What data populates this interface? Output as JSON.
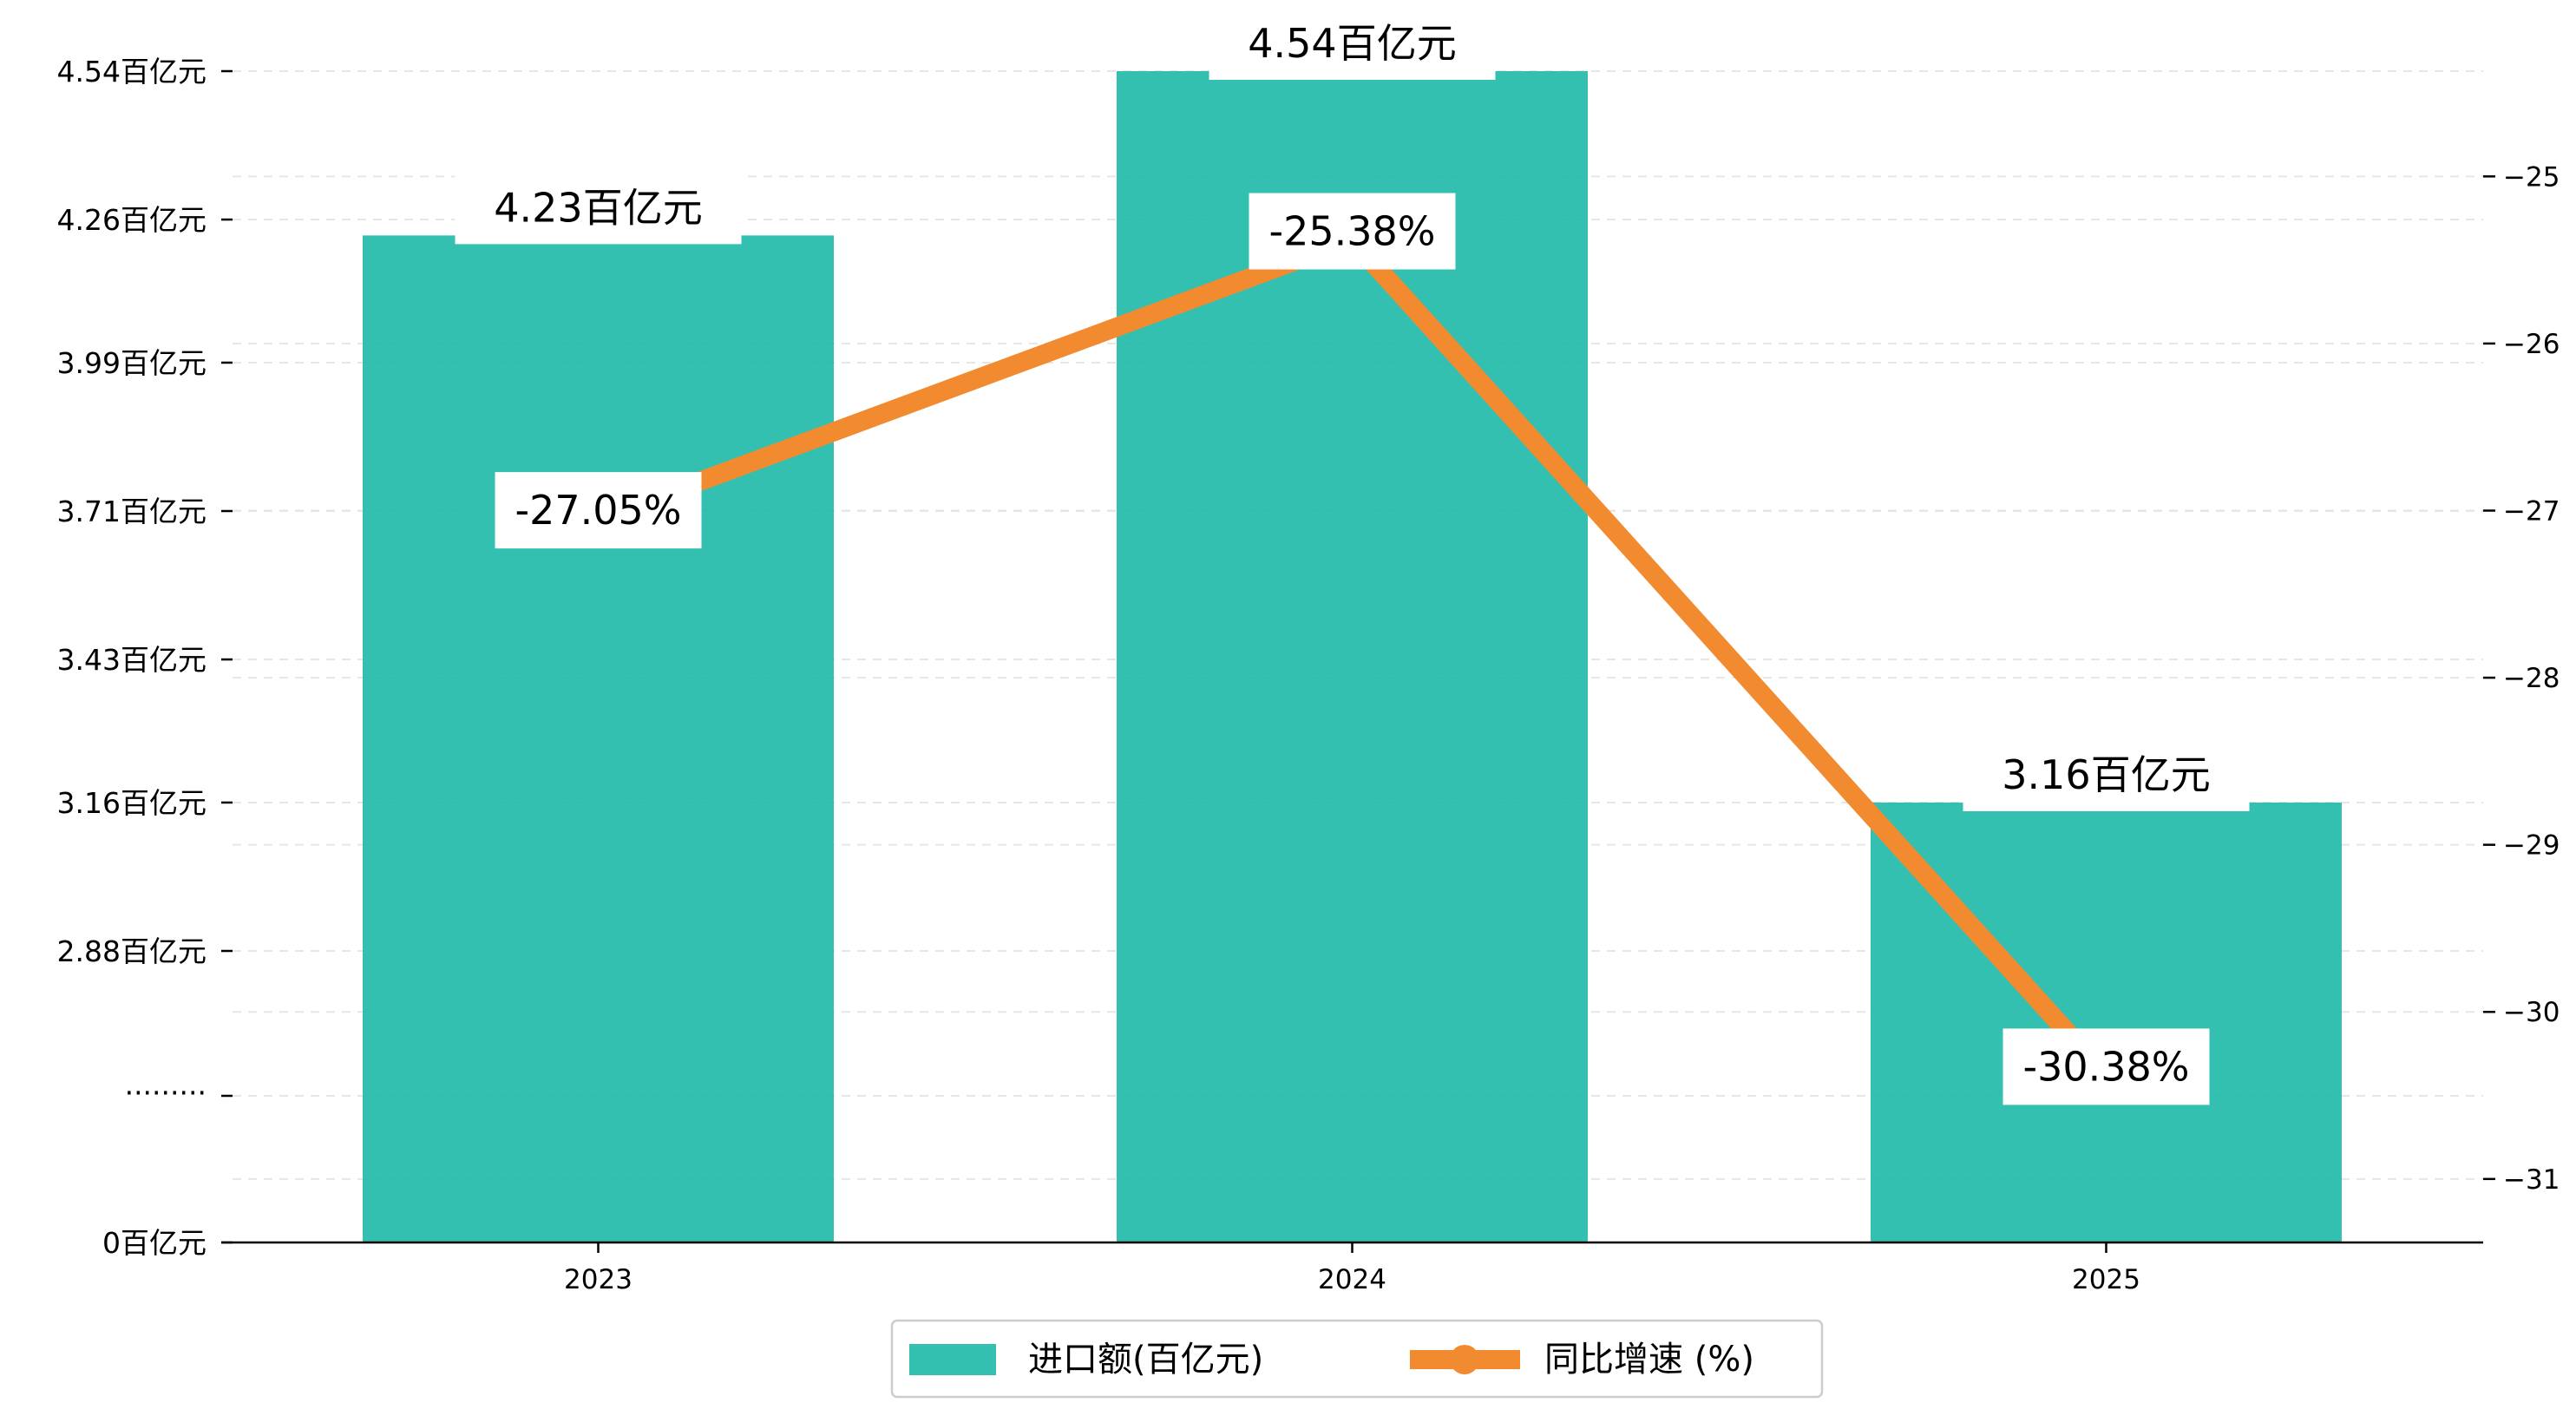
{
  "chart_data": {
    "type": "bar",
    "categories": [
      "2023",
      "2024",
      "2025"
    ],
    "series": [
      {
        "name": "进口额(百亿元)",
        "type": "bar",
        "axis": "left",
        "values": [
          4.23,
          4.54,
          3.16
        ],
        "labels": [
          "4.23百亿元",
          "4.54百亿元",
          "3.16百亿元"
        ],
        "color": "#1DB9A8"
      },
      {
        "name": "同比增速 (%)",
        "type": "line",
        "axis": "right",
        "values": [
          -27.05,
          -25.38,
          -30.38
        ],
        "labels": [
          "-27.05%",
          "-25.38%",
          "-30.38%"
        ],
        "color": "#F28A30"
      }
    ],
    "left_axis": {
      "scale": "broken",
      "break_label": "·········",
      "ticks": [
        {
          "value": 0,
          "label": "0百亿元"
        },
        {
          "value": 2.88,
          "label": "2.88百亿元"
        },
        {
          "value": 3.16,
          "label": "3.16百亿元"
        },
        {
          "value": 3.43,
          "label": "3.43百亿元"
        },
        {
          "value": 3.71,
          "label": "3.71百亿元"
        },
        {
          "value": 3.99,
          "label": "3.99百亿元"
        },
        {
          "value": 4.26,
          "label": "4.26百亿元"
        },
        {
          "value": 4.54,
          "label": "4.54百亿元"
        }
      ]
    },
    "right_axis": {
      "ylim": [
        -31.38,
        -24.37
      ],
      "ticks": [
        -25,
        -26,
        -27,
        -28,
        -29,
        -30,
        -31
      ],
      "tick_labels": [
        "−25",
        "−26",
        "−27",
        "−28",
        "−29",
        "−30",
        "−31"
      ]
    },
    "grid": true,
    "legend_position": "bottom-center"
  }
}
